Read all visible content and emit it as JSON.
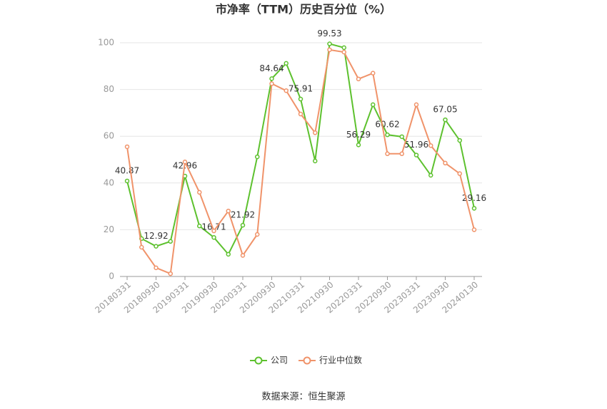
{
  "chart_data": {
    "type": "line",
    "title": "市净率（TTM）历史百分位（%）",
    "categories": [
      "20180331",
      null,
      "20180930",
      null,
      "20190331",
      null,
      "20190930",
      null,
      "20200331",
      null,
      "20200930",
      null,
      "20210331",
      null,
      "20210930",
      null,
      "20220331",
      null,
      "20220930",
      null,
      "20230331",
      null,
      "20230930",
      null,
      "20240130"
    ],
    "series": [
      {
        "name": "公司",
        "color": "#5dc12e",
        "values": [
          40.87,
          16.2,
          12.92,
          15,
          42.96,
          21.6,
          16.71,
          9.5,
          21.92,
          51.2,
          84.64,
          91.2,
          75.91,
          49.4,
          99.53,
          97.9,
          56.29,
          73.5,
          60.62,
          59.8,
          51.96,
          43.3,
          67.05,
          58.2,
          29.16
        ],
        "value_labels": [
          "40.87",
          null,
          "12.92",
          null,
          "42.96",
          null,
          "16.71",
          null,
          "21.92",
          null,
          "84.64",
          null,
          "75.91",
          null,
          "99.53",
          null,
          "56.29",
          null,
          "60.62",
          null,
          "51.96",
          null,
          "67.05",
          null,
          "29.16"
        ]
      },
      {
        "name": "行业中位数",
        "color": "#f0936a",
        "values": [
          55.5,
          12.5,
          3.7,
          1.2,
          49,
          36,
          19.5,
          28,
          9,
          18,
          82.5,
          79.5,
          69.5,
          61.5,
          97,
          96,
          84.5,
          87,
          52.5,
          52.5,
          73.5,
          56,
          48.5,
          44,
          20
        ]
      }
    ],
    "ylim": [
      0,
      100
    ],
    "yticks": [
      0,
      20,
      40,
      60,
      80,
      100
    ],
    "grid": true,
    "source": "数据来源：恒生聚源"
  }
}
